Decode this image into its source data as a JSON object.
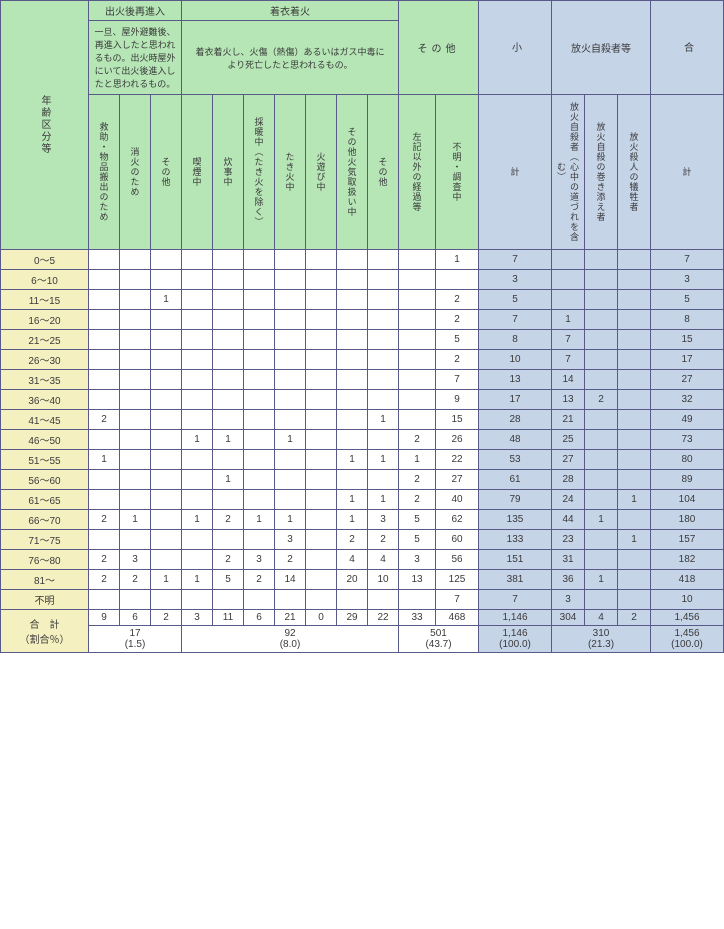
{
  "colors": {
    "hg": "#b6e5b6",
    "hb": "#c6d4e8",
    "hy": "#f5f0c0",
    "border": "#5a5a8a",
    "text": "#3a3a3a"
  },
  "h": {
    "top": [
      "出火後再進入",
      "着衣着火",
      "その他",
      "小",
      "放火自殺者等",
      "合"
    ],
    "desc": [
      "一旦、屋外避難後、再進入したと思われるもの。出火時屋外にいて出火後進入したと思われるもの。",
      "着衣着火し、火傷（熱傷）あるいはガス中毒により死亡したと思われるもの。"
    ],
    "rowh": "年齢区分等",
    "c": [
      "救助・物品搬出のため",
      "消火のため",
      "その他",
      "喫煙中",
      "炊事中",
      "採暖中（たき火を除く）",
      "たき火中",
      "火遊び中",
      "その他火気取扱い中",
      "その他",
      "左記以外の経過等",
      "不明・調査中",
      "計",
      "放火自殺者（心中の道づれを含む）",
      "放火自殺の巻き添え者",
      "放火殺人の犠牲者",
      "計"
    ]
  },
  "rows": [
    {
      "l": "0～5",
      "v": [
        "",
        "",
        "",
        "",
        "",
        "",
        "",
        "",
        "",
        "",
        "",
        "1",
        "7",
        "",
        "",
        "",
        "7"
      ]
    },
    {
      "l": "6～10",
      "v": [
        "",
        "",
        "",
        "",
        "",
        "",
        "",
        "",
        "",
        "",
        "",
        "",
        "3",
        "",
        "",
        "",
        "3"
      ]
    },
    {
      "l": "11～15",
      "v": [
        "",
        "",
        "1",
        "",
        "",
        "",
        "",
        "",
        "",
        "",
        "",
        "2",
        "5",
        "",
        "",
        "",
        "5"
      ]
    },
    {
      "l": "16～20",
      "v": [
        "",
        "",
        "",
        "",
        "",
        "",
        "",
        "",
        "",
        "",
        "",
        "2",
        "7",
        "1",
        "",
        "",
        "8"
      ]
    },
    {
      "l": "21～25",
      "v": [
        "",
        "",
        "",
        "",
        "",
        "",
        "",
        "",
        "",
        "",
        "",
        "5",
        "8",
        "7",
        "",
        "",
        "15"
      ]
    },
    {
      "l": "26～30",
      "v": [
        "",
        "",
        "",
        "",
        "",
        "",
        "",
        "",
        "",
        "",
        "",
        "2",
        "10",
        "7",
        "",
        "",
        "17"
      ]
    },
    {
      "l": "31～35",
      "v": [
        "",
        "",
        "",
        "",
        "",
        "",
        "",
        "",
        "",
        "",
        "",
        "7",
        "13",
        "14",
        "",
        "",
        "27"
      ]
    },
    {
      "l": "36～40",
      "v": [
        "",
        "",
        "",
        "",
        "",
        "",
        "",
        "",
        "",
        "",
        "",
        "9",
        "17",
        "13",
        "2",
        "",
        "32"
      ]
    },
    {
      "l": "41～45",
      "v": [
        "2",
        "",
        "",
        "",
        "",
        "",
        "",
        "",
        "",
        "1",
        "",
        "15",
        "28",
        "21",
        "",
        "",
        "49"
      ]
    },
    {
      "l": "46～50",
      "v": [
        "",
        "",
        "",
        "1",
        "1",
        "",
        "1",
        "",
        "",
        "",
        "2",
        "26",
        "48",
        "25",
        "",
        "",
        "73"
      ]
    },
    {
      "l": "51～55",
      "v": [
        "1",
        "",
        "",
        "",
        "",
        "",
        "",
        "",
        "1",
        "1",
        "1",
        "22",
        "53",
        "27",
        "",
        "",
        "80"
      ]
    },
    {
      "l": "56～60",
      "v": [
        "",
        "",
        "",
        "",
        "1",
        "",
        "",
        "",
        "",
        "",
        "2",
        "27",
        "61",
        "28",
        "",
        "",
        "89"
      ]
    },
    {
      "l": "61～65",
      "v": [
        "",
        "",
        "",
        "",
        "",
        "",
        "",
        "",
        "1",
        "1",
        "2",
        "40",
        "79",
        "24",
        "",
        "1",
        "104"
      ]
    },
    {
      "l": "66～70",
      "v": [
        "2",
        "1",
        "",
        "1",
        "2",
        "1",
        "1",
        "",
        "1",
        "3",
        "5",
        "62",
        "135",
        "44",
        "1",
        "",
        "180"
      ]
    },
    {
      "l": "71～75",
      "v": [
        "",
        "",
        "",
        "",
        "",
        "",
        "3",
        "",
        "2",
        "2",
        "5",
        "60",
        "133",
        "23",
        "",
        "1",
        "157"
      ]
    },
    {
      "l": "76～80",
      "v": [
        "2",
        "3",
        "",
        "",
        "2",
        "3",
        "2",
        "",
        "4",
        "4",
        "3",
        "56",
        "151",
        "31",
        "",
        "",
        "182"
      ]
    },
    {
      "l": "81～",
      "v": [
        "2",
        "2",
        "1",
        "1",
        "5",
        "2",
        "14",
        "",
        "20",
        "10",
        "13",
        "125",
        "381",
        "36",
        "1",
        "",
        "418"
      ]
    },
    {
      "l": "不明",
      "v": [
        "",
        "",
        "",
        "",
        "",
        "",
        "",
        "",
        "",
        "",
        "",
        "7",
        "7",
        "3",
        "",
        "",
        "10"
      ]
    }
  ],
  "tot": {
    "l": "合　計",
    "v": [
      "9",
      "6",
      "2",
      "3",
      "11",
      "6",
      "21",
      "0",
      "29",
      "22",
      "33",
      "468",
      "1,146",
      "304",
      "4",
      "2",
      "1,456"
    ]
  },
  "pct": {
    "l": "（割合％）",
    "g": [
      "17",
      "(1.5)",
      "92",
      "(8.0)",
      "501",
      "(43.7)",
      "1,146",
      "(100.0)",
      "310",
      "(21.3)",
      "1,456",
      "(100.0)"
    ]
  }
}
